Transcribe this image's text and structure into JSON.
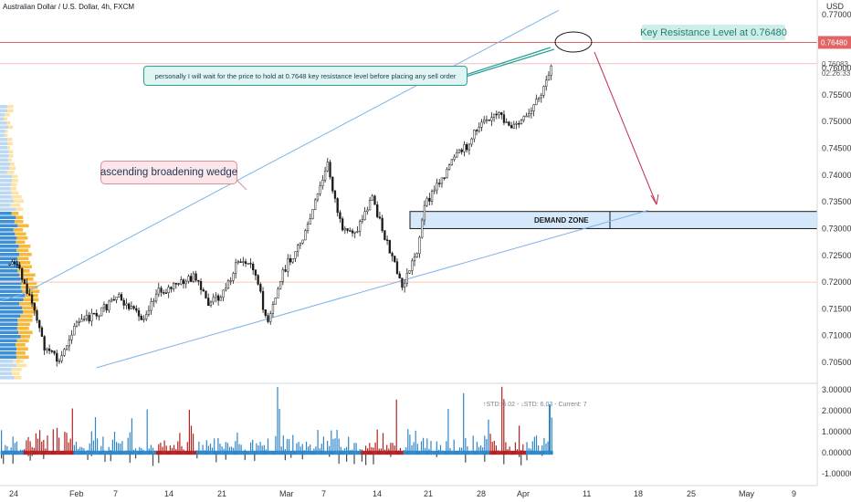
{
  "header": {
    "symbol_title": "Australian Dollar / U.S. Dollar, 4h, FXCM"
  },
  "price_axis": {
    "currency": "USD",
    "ticks": [
      "0.77000",
      "0.76500",
      "0.76000",
      "0.75500",
      "0.75000",
      "0.74500",
      "0.74000",
      "0.73500",
      "0.73000",
      "0.72500",
      "0.72000",
      "0.71500",
      "0.71000",
      "0.70500"
    ],
    "key_level_badge": "0.76480",
    "last_price_badge": "0.76083",
    "countdown_badge": "02:26:33"
  },
  "oscillator_axis": {
    "ticks": [
      "3.00000",
      "2.00000",
      "1.00000",
      "0.00000",
      "-1.00000"
    ]
  },
  "time_axis": {
    "labels": [
      "24",
      "Feb",
      "7",
      "14",
      "21",
      "Mar",
      "7",
      "14",
      "21",
      "28",
      "Apr",
      "11",
      "18",
      "25",
      "May",
      "9"
    ]
  },
  "annotations": {
    "key_resistance": "Key Resistance Level at 0.76480",
    "wait_note": "personally I will wait for the price to hold at 0.7648 key resistance level before placing any sell order",
    "wedge_label": "ascending broadening wedge",
    "demand_zone": "DEMAND ZONE",
    "oscillator_legend": "↑STD: 6.02 - ↓STD: 6.03 - Current: 7"
  },
  "colors": {
    "bull_bar": "#2f86c9",
    "bear_bar": "#b22222",
    "wedge_line": "#7fb3e6",
    "key_level": "#e06666",
    "demand_fill": "#d6e8fb",
    "arrow": "#c2304f",
    "callout_border": "#2aa197"
  },
  "chart_data": {
    "type": "candlestick",
    "instrument": "AUD/USD",
    "timeframe": "4h",
    "y_range": [
      0.7025,
      0.7725
    ],
    "key_resistance_level": 0.7648,
    "last_price": 0.76083,
    "support_level": 0.72,
    "demand_zone": [
      0.73,
      0.7332
    ],
    "wedge": {
      "upper": [
        {
          "date": "2021-01-25",
          "price": 0.7177
        },
        {
          "date": "2021-04-07",
          "price": 0.7708
        }
      ],
      "lower": [
        {
          "date": "2021-02-04",
          "price": 0.704
        },
        {
          "date": "2021-04-19",
          "price": 0.7334
        }
      ]
    },
    "price_path": [
      {
        "date": "2021-01-23",
        "price": 0.723
      },
      {
        "date": "2021-01-24",
        "price": 0.724
      },
      {
        "date": "2021-01-26",
        "price": 0.7175
      },
      {
        "date": "2021-01-28",
        "price": 0.708
      },
      {
        "date": "2021-01-30",
        "price": 0.705
      },
      {
        "date": "2021-02-01",
        "price": 0.712
      },
      {
        "date": "2021-02-04",
        "price": 0.714
      },
      {
        "date": "2021-02-07",
        "price": 0.717
      },
      {
        "date": "2021-02-10",
        "price": 0.713
      },
      {
        "date": "2021-02-12",
        "price": 0.718
      },
      {
        "date": "2021-02-14",
        "price": 0.719
      },
      {
        "date": "2021-02-17",
        "price": 0.721
      },
      {
        "date": "2021-02-19",
        "price": 0.716
      },
      {
        "date": "2021-02-21",
        "price": 0.718
      },
      {
        "date": "2021-02-23",
        "price": 0.724
      },
      {
        "date": "2021-02-25",
        "price": 0.723
      },
      {
        "date": "2021-02-27",
        "price": 0.712
      },
      {
        "date": "2021-03-01",
        "price": 0.722
      },
      {
        "date": "2021-03-04",
        "price": 0.729
      },
      {
        "date": "2021-03-07",
        "price": 0.742
      },
      {
        "date": "2021-03-09",
        "price": 0.729
      },
      {
        "date": "2021-03-11",
        "price": 0.73
      },
      {
        "date": "2021-03-13",
        "price": 0.736
      },
      {
        "date": "2021-03-15",
        "price": 0.727
      },
      {
        "date": "2021-03-17",
        "price": 0.719
      },
      {
        "date": "2021-03-19",
        "price": 0.726
      },
      {
        "date": "2021-03-20",
        "price": 0.734
      },
      {
        "date": "2021-03-22",
        "price": 0.739
      },
      {
        "date": "2021-03-24",
        "price": 0.743
      },
      {
        "date": "2021-03-26",
        "price": 0.746
      },
      {
        "date": "2021-03-28",
        "price": 0.751
      },
      {
        "date": "2021-03-30",
        "price": 0.751
      },
      {
        "date": "2021-04-01",
        "price": 0.749
      },
      {
        "date": "2021-04-03",
        "price": 0.751
      },
      {
        "date": "2021-04-05",
        "price": 0.756
      },
      {
        "date": "2021-04-06",
        "price": 0.7608
      }
    ],
    "oscillator": {
      "levels": [
        3,
        2,
        1,
        0,
        -1
      ],
      "up_std": 6.02,
      "down_std": 6.03,
      "current": 7
    }
  }
}
